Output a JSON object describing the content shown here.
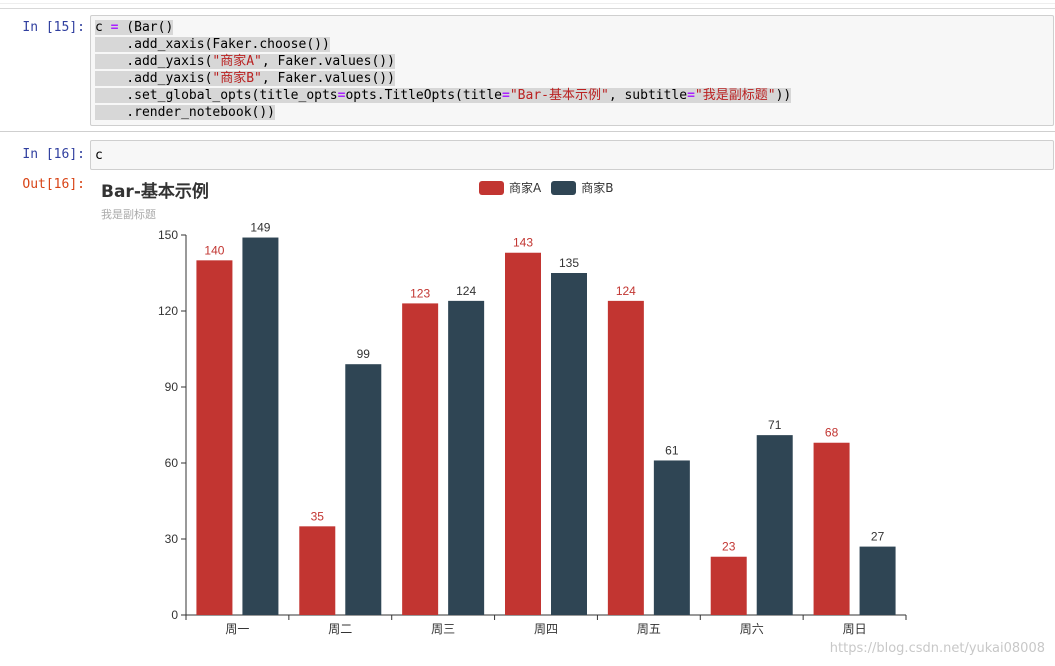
{
  "cells": [
    {
      "prompt": "In [15]:",
      "code_lines": [
        [
          "c ",
          {
            "op": "="
          },
          " (Bar()"
        ],
        [
          "    .add_xaxis(Faker.choose())"
        ],
        [
          "    .add_yaxis(",
          {
            "str": "\"商家A\""
          },
          ", Faker.values())"
        ],
        [
          "    .add_yaxis(",
          {
            "str": "\"商家B\""
          },
          ", Faker.values())"
        ],
        [
          "    .set_global_opts(title_opts",
          {
            "op": "="
          },
          "opts.TitleOpts(title",
          {
            "op": "="
          },
          {
            "str": "\"Bar-基本示例\""
          },
          ", subtitle",
          {
            "op": "="
          },
          {
            "str": "\"我是副标题\""
          },
          "))"
        ],
        [
          "    .render_notebook())"
        ]
      ]
    },
    {
      "prompt": "In [16]:",
      "code": "c"
    }
  ],
  "output": {
    "prompt": "Out[16]:",
    "watermark": "https://blog.csdn.net/yukai08008"
  },
  "chart_data": {
    "type": "bar",
    "title": "Bar-基本示例",
    "subtitle": "我是副标题",
    "categories": [
      "周一",
      "周二",
      "周三",
      "周四",
      "周五",
      "周六",
      "周日"
    ],
    "series": [
      {
        "name": "商家A",
        "color": "#c23531",
        "label_color": "#c23531",
        "values": [
          140,
          35,
          123,
          143,
          124,
          23,
          68
        ]
      },
      {
        "name": "商家B",
        "color": "#2f4554",
        "label_color": "#333333",
        "values": [
          149,
          99,
          124,
          135,
          61,
          71,
          27
        ]
      }
    ],
    "ylim": [
      0,
      150
    ],
    "yticks": [
      0,
      30,
      60,
      90,
      120,
      150
    ],
    "legend_position": "top-center",
    "grid": false
  }
}
